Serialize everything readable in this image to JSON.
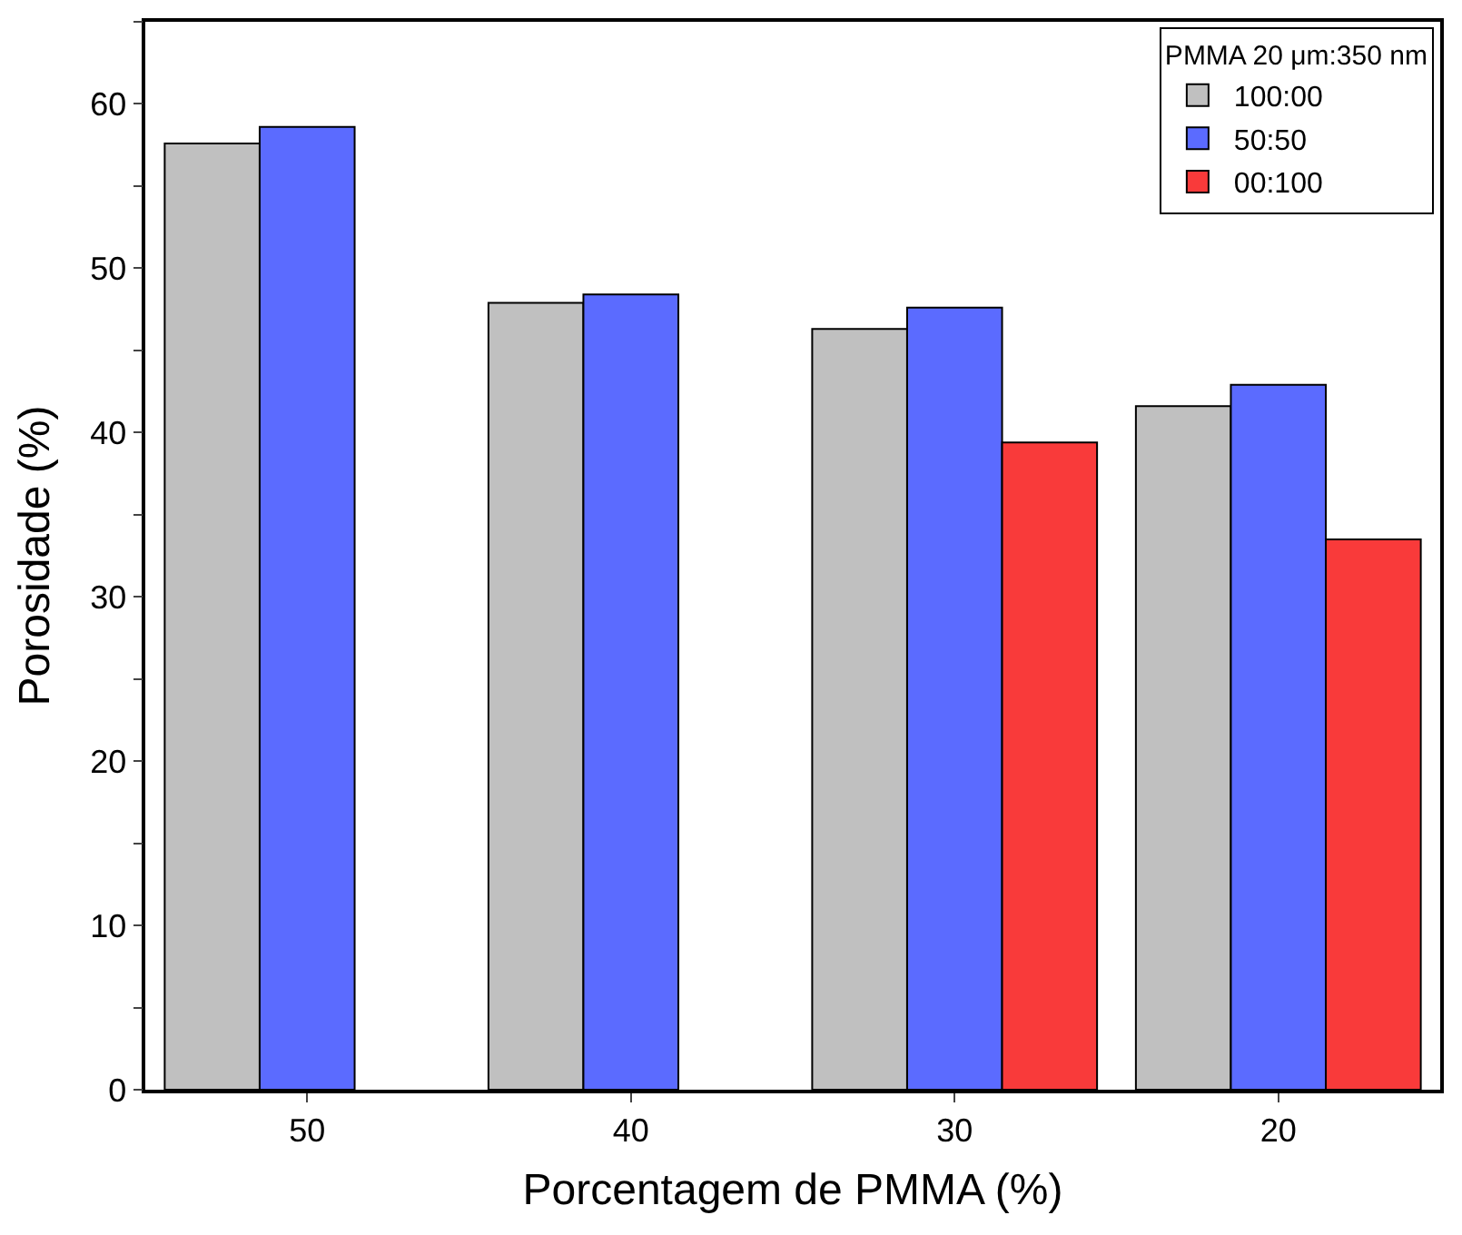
{
  "chart_data": {
    "type": "bar",
    "xlabel": "Porcentagem de PMMA (%)",
    "ylabel": "Porosidade (%)",
    "legend_title": "PMMA 20 μm:350 nm",
    "categories": [
      "50",
      "40",
      "30",
      "20"
    ],
    "series": [
      {
        "name": "100:00",
        "color": "#c0c0c0",
        "values": [
          57.6,
          47.9,
          46.3,
          41.6
        ]
      },
      {
        "name": "50:50",
        "color": "#5b6bff",
        "values": [
          58.6,
          48.4,
          47.6,
          42.9
        ]
      },
      {
        "name": "00:100",
        "color": "#f93a3a",
        "values": [
          null,
          null,
          39.4,
          33.5
        ]
      }
    ],
    "ylim": [
      0,
      65
    ],
    "yticks": [
      0,
      {
        "value": 5,
        "label": null
      },
      10,
      {
        "value": 15,
        "label": null
      },
      20,
      {
        "value": 25,
        "label": null
      },
      30,
      {
        "value": 35,
        "label": null
      },
      40,
      {
        "value": 45,
        "label": null
      },
      50,
      {
        "value": 55,
        "label": null
      },
      60,
      {
        "value": 65,
        "label": null
      }
    ],
    "legend": "top right"
  }
}
